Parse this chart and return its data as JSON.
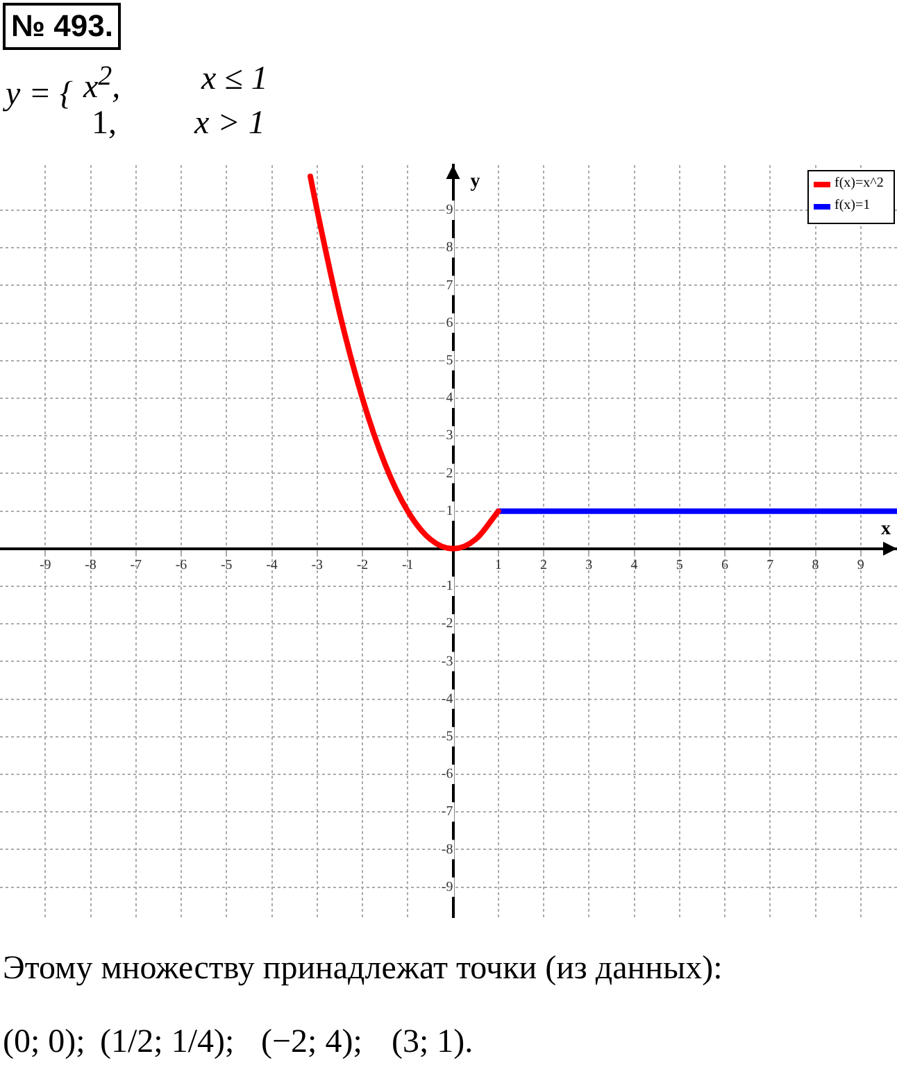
{
  "chart_data": {
    "type": "line",
    "title": "№ 493.",
    "annotations": [
      "y = {",
      "x$^{2}$,",
      "x ≤ 1",
      "1,",
      "x > 1",
      "Этому множеству принадлежат точки (из данных):",
      "(0; 0);",
      "(1/2; 1/4);",
      "(−2; 4);",
      "(3; 1)."
    ],
    "xlabel": "x",
    "ylabel": "y",
    "series": [
      {
        "name": "f(x)=x^2",
        "color": "#ff0000",
        "x": [
          -3.15,
          -3,
          -2.5,
          -2,
          -1.5,
          -1,
          -0.5,
          0,
          0.5,
          1
        ],
        "values": [
          9.9,
          9,
          6.25,
          4,
          2.25,
          1,
          0.25,
          0,
          0.25,
          1
        ]
      },
      {
        "name": "f(x)=1",
        "color": "#0000ff",
        "x": [
          1,
          9.8
        ],
        "values": [
          1,
          1
        ]
      }
    ],
    "xlim": [
      -10,
      9.8
    ],
    "ylim": [
      -9.8,
      10.2
    ],
    "xticks": [
      -9,
      -8,
      -7,
      -6,
      -5,
      -4,
      -3,
      -2,
      -1,
      1,
      2,
      3,
      4,
      5,
      6,
      7,
      8,
      9
    ],
    "yticks": [
      -9,
      -8,
      -7,
      -6,
      -5,
      -4,
      -3,
      -2,
      -1,
      1,
      2,
      3,
      4,
      5,
      6,
      7,
      8,
      9
    ],
    "grid": true,
    "legend": "top right",
    "marker": "none",
    "line_style": "solid"
  }
}
